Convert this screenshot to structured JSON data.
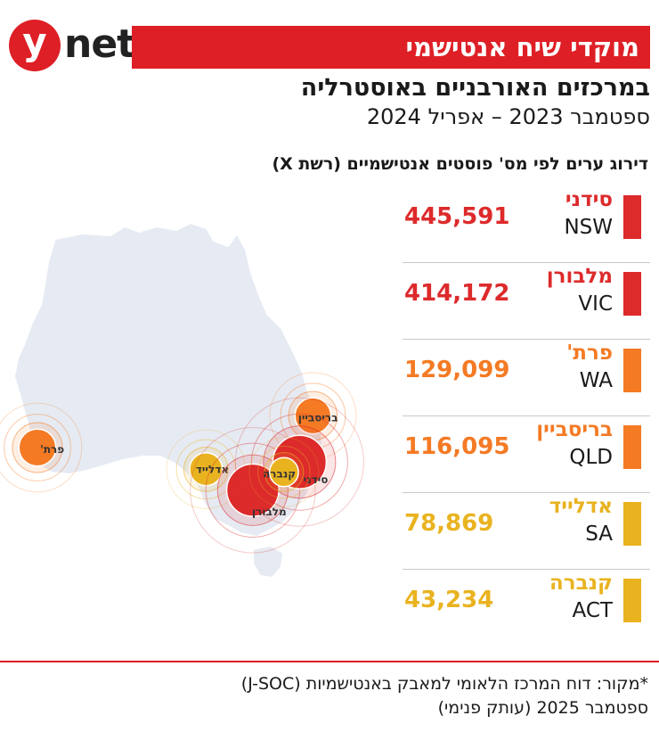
{
  "header": {
    "logo_letter": "y",
    "logo_word": "net",
    "title": "מוקדי שיח אנטישמי",
    "subtitle_1": "במרכזים האורבניים באוסטרליה",
    "subtitle_2": "ספטמבר 2023 – אפריל 2024",
    "ranking_label": "דירוג ערים לפי מס' פוסטים אנטישמיים (רשת X)"
  },
  "chart_data": {
    "type": "table",
    "title": "מוקדי שיח אנטישמי",
    "rows": [
      {
        "city": "סידני",
        "state": "NSW",
        "value": 445591,
        "value_label": "445,591",
        "color": "#dd2a2b",
        "map_label": "סידני",
        "lon": 151.2,
        "lat": -33.9
      },
      {
        "city": "מלבורן",
        "state": "VIC",
        "value": 414172,
        "value_label": "414,172",
        "color": "#dd2a2b",
        "map_label": "מלבורן",
        "lon": 144.9,
        "lat": -37.8
      },
      {
        "city": "פרת'",
        "state": "WA",
        "value": 129099,
        "value_label": "129,099",
        "color": "#f47a24",
        "map_label": "פרת'",
        "lon": 115.9,
        "lat": -31.9
      },
      {
        "city": "בריסביין",
        "state": "QLD",
        "value": 116095,
        "value_label": "116,095",
        "color": "#f47a24",
        "map_label": "בריסביין",
        "lon": 153.0,
        "lat": -27.5
      },
      {
        "city": "אדלייד",
        "state": "SA",
        "value": 78869,
        "value_label": "78,869",
        "color": "#e9b320",
        "map_label": "אדלייד",
        "lon": 138.6,
        "lat": -34.9
      },
      {
        "city": "קנברה",
        "state": "ACT",
        "value": 43234,
        "value_label": "43,234",
        "color": "#e9b320",
        "map_label": "קנברה",
        "lon": 149.1,
        "lat": -35.3
      }
    ]
  },
  "colors": {
    "accent": "#de1f26",
    "land": "#e6eaf2",
    "land_outline": "#ffffff"
  },
  "footer": {
    "source_1": "*מקור: דוח המרכז הלאומי למאבק באנטישמיות (J-SOC)",
    "source_2": "ספטמבר 2025 (עותק פנימי)"
  }
}
